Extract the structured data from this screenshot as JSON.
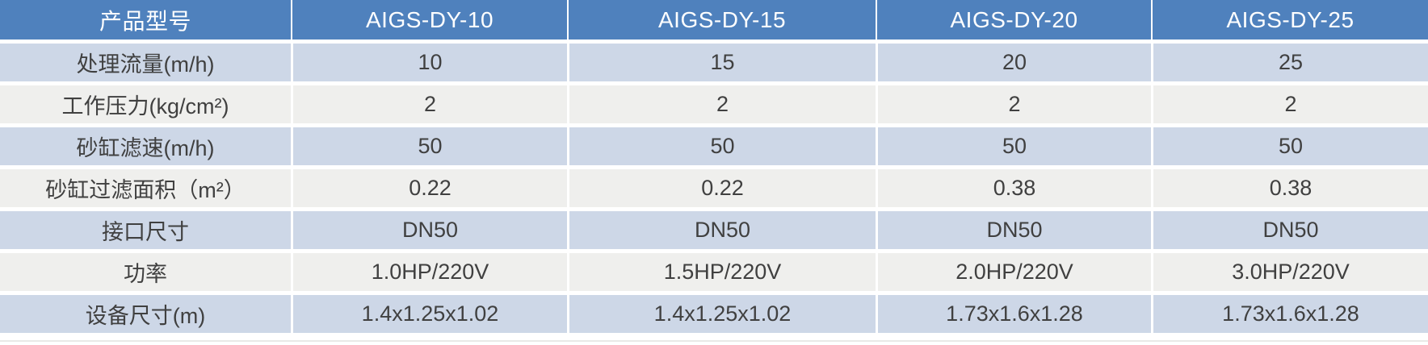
{
  "theme": {
    "header_bg": "#4F81BD",
    "header_text": "#FFFFFF",
    "row_alt_blue": "#CDD7E7",
    "row_alt_gray": "#EFEFED",
    "cell_text": "#404040"
  },
  "table": {
    "header": {
      "label": "产品型号",
      "models": [
        "AIGS-DY-10",
        "AIGS-DY-15",
        "AIGS-DY-20",
        "AIGS-DY-25"
      ]
    },
    "rows": [
      {
        "label": "处理流量(m/h)",
        "values": [
          "10",
          "15",
          "20",
          "25"
        ]
      },
      {
        "label": "工作压力(kg/cm²)",
        "values": [
          "2",
          "2",
          "2",
          "2"
        ]
      },
      {
        "label": "砂缸滤速(m/h)",
        "values": [
          "50",
          "50",
          "50",
          "50"
        ]
      },
      {
        "label": "砂缸过滤面积（m²）",
        "values": [
          "0.22",
          "0.22",
          "0.38",
          "0.38"
        ]
      },
      {
        "label": "接口尺寸",
        "values": [
          "DN50",
          "DN50",
          "DN50",
          "DN50"
        ]
      },
      {
        "label": "功率",
        "values": [
          "1.0HP/220V",
          "1.5HP/220V",
          "2.0HP/220V",
          "3.0HP/220V"
        ]
      },
      {
        "label": "设备尺寸(m)",
        "values": [
          "1.4x1.25x1.02",
          "1.4x1.25x1.02",
          "1.73x1.6x1.28",
          "1.73x1.6x1.28"
        ]
      }
    ]
  }
}
